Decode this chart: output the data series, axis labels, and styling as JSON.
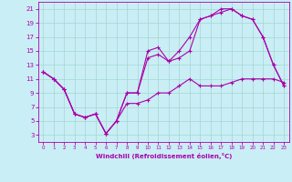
{
  "xlabel": "Windchill (Refroidissement éolien,°C)",
  "background_color": "#caeef5",
  "grid_color": "#a0d8d0",
  "line_color": "#aa00aa",
  "xlim": [
    -0.5,
    23.5
  ],
  "ylim": [
    2,
    22
  ],
  "xticks": [
    0,
    1,
    2,
    3,
    4,
    5,
    6,
    7,
    8,
    9,
    10,
    11,
    12,
    13,
    14,
    15,
    16,
    17,
    18,
    19,
    20,
    21,
    22,
    23
  ],
  "yticks": [
    3,
    5,
    7,
    9,
    11,
    13,
    15,
    17,
    19,
    21
  ],
  "line1_x": [
    0,
    1,
    2,
    3,
    4,
    5,
    6,
    7,
    8,
    9,
    10,
    11,
    12,
    13,
    14,
    15,
    16,
    17,
    18,
    19,
    20,
    21,
    22,
    23
  ],
  "line1_y": [
    12,
    11,
    9.5,
    6,
    5.5,
    6,
    3.2,
    5,
    9,
    9,
    15,
    15.5,
    13.5,
    14,
    15,
    19.5,
    20,
    21,
    21,
    20,
    19.5,
    17,
    13,
    10
  ],
  "line2_x": [
    0,
    1,
    2,
    3,
    4,
    5,
    6,
    7,
    8,
    9,
    10,
    11,
    12,
    13,
    14,
    15,
    16,
    17,
    18,
    19,
    20,
    21,
    22,
    23
  ],
  "line2_y": [
    12,
    11,
    9.5,
    6,
    5.5,
    6,
    3.2,
    5,
    7.5,
    7.5,
    8,
    9,
    9,
    10,
    11,
    10,
    10,
    10,
    10.5,
    11,
    11,
    11,
    11,
    10.5
  ],
  "line3_x": [
    0,
    1,
    2,
    3,
    4,
    5,
    6,
    7,
    8,
    9,
    10,
    11,
    12,
    13,
    14,
    15,
    16,
    17,
    18,
    19,
    20,
    21,
    22,
    23
  ],
  "line3_y": [
    12,
    11,
    9.5,
    6,
    5.5,
    6,
    3.2,
    5,
    9,
    9,
    14,
    14.5,
    13.5,
    15,
    17,
    19.5,
    20,
    20.5,
    21,
    20,
    19.5,
    17,
    13,
    10
  ]
}
